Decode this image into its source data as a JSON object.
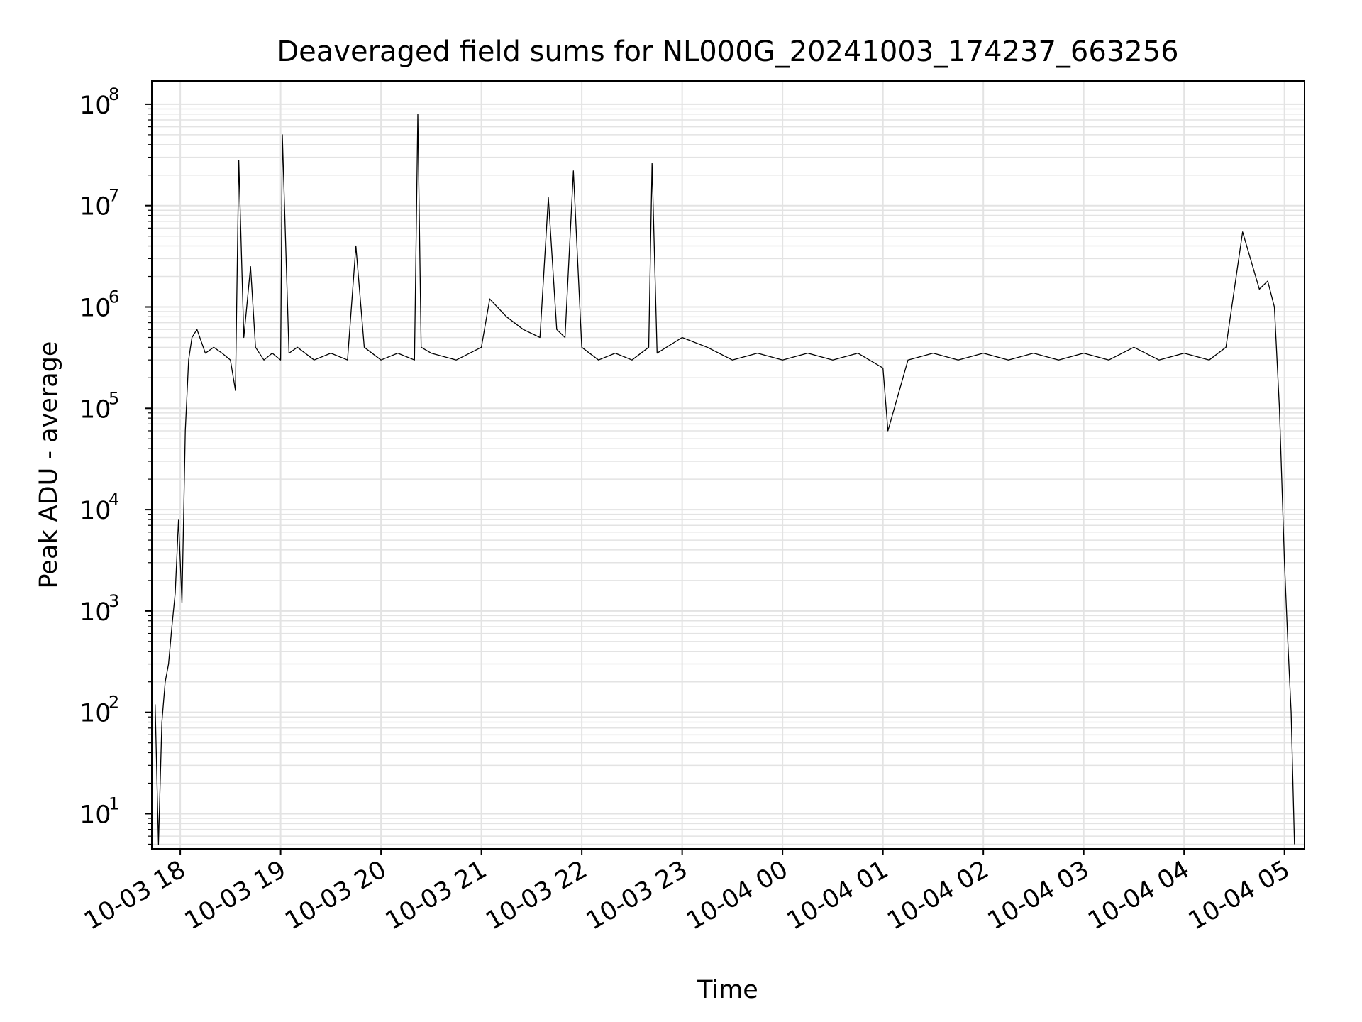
{
  "chart_data": {
    "type": "line",
    "title": "Deaveraged field sums for NL000G_20241003_174237_663256",
    "xlabel": "Time",
    "ylabel": "Peak ADU - average",
    "yscale": "log",
    "ylim": [
      4.5,
      170000000
    ],
    "xlim": [
      "2024-10-03 17:43",
      "2024-10-04 05:12"
    ],
    "grid": true,
    "x_ticks": [
      "10-03 18",
      "10-03 19",
      "10-03 20",
      "10-03 21",
      "10-03 22",
      "10-03 23",
      "10-04 00",
      "10-04 01",
      "10-04 02",
      "10-04 03",
      "10-04 04",
      "10-04 05"
    ],
    "y_ticks": [
      {
        "base": "10",
        "exp": "1"
      },
      {
        "base": "10",
        "exp": "2"
      },
      {
        "base": "10",
        "exp": "3"
      },
      {
        "base": "10",
        "exp": "4"
      },
      {
        "base": "10",
        "exp": "5"
      },
      {
        "base": "10",
        "exp": "6"
      },
      {
        "base": "10",
        "exp": "7"
      },
      {
        "base": "10",
        "exp": "8"
      }
    ],
    "series": [
      {
        "color": "#000000",
        "x": [
          "2024-10-03 17:45",
          "2024-10-03 17:47",
          "2024-10-03 17:49",
          "2024-10-03 17:51",
          "2024-10-03 17:53",
          "2024-10-03 17:55",
          "2024-10-03 17:57",
          "2024-10-03 17:59",
          "2024-10-03 18:01",
          "2024-10-03 18:03",
          "2024-10-03 18:05",
          "2024-10-03 18:07",
          "2024-10-03 18:10",
          "2024-10-03 18:15",
          "2024-10-03 18:20",
          "2024-10-03 18:25",
          "2024-10-03 18:30",
          "2024-10-03 18:33",
          "2024-10-03 18:35",
          "2024-10-03 18:38",
          "2024-10-03 18:42",
          "2024-10-03 18:45",
          "2024-10-03 18:50",
          "2024-10-03 18:55",
          "2024-10-03 19:00",
          "2024-10-03 19:01",
          "2024-10-03 19:05",
          "2024-10-03 19:10",
          "2024-10-03 19:20",
          "2024-10-03 19:30",
          "2024-10-03 19:40",
          "2024-10-03 19:45",
          "2024-10-03 19:50",
          "2024-10-03 20:00",
          "2024-10-03 20:10",
          "2024-10-03 20:20",
          "2024-10-03 20:22",
          "2024-10-03 20:24",
          "2024-10-03 20:30",
          "2024-10-03 20:45",
          "2024-10-03 21:00",
          "2024-10-03 21:05",
          "2024-10-03 21:15",
          "2024-10-03 21:25",
          "2024-10-03 21:35",
          "2024-10-03 21:40",
          "2024-10-03 21:45",
          "2024-10-03 21:50",
          "2024-10-03 21:55",
          "2024-10-03 22:00",
          "2024-10-03 22:10",
          "2024-10-03 22:20",
          "2024-10-03 22:30",
          "2024-10-03 22:40",
          "2024-10-03 22:42",
          "2024-10-03 22:45",
          "2024-10-03 23:00",
          "2024-10-03 23:15",
          "2024-10-03 23:30",
          "2024-10-03 23:45",
          "2024-10-04 00:00",
          "2024-10-04 00:15",
          "2024-10-04 00:30",
          "2024-10-04 00:45",
          "2024-10-04 01:00",
          "2024-10-04 01:03",
          "2024-10-04 01:15",
          "2024-10-04 01:30",
          "2024-10-04 01:45",
          "2024-10-04 02:00",
          "2024-10-04 02:15",
          "2024-10-04 02:30",
          "2024-10-04 02:45",
          "2024-10-04 03:00",
          "2024-10-04 03:15",
          "2024-10-04 03:30",
          "2024-10-04 03:45",
          "2024-10-04 04:00",
          "2024-10-04 04:15",
          "2024-10-04 04:25",
          "2024-10-04 04:35",
          "2024-10-04 04:45",
          "2024-10-04 04:50",
          "2024-10-04 04:54",
          "2024-10-04 04:57",
          "2024-10-04 05:00",
          "2024-10-04 05:02",
          "2024-10-04 05:04",
          "2024-10-04 05:06"
        ],
        "y": [
          120,
          5,
          80,
          200,
          300,
          700,
          1500,
          8000,
          1200,
          60000,
          300000,
          500000,
          600000,
          350000,
          400000,
          350000,
          300000,
          150000,
          28000000,
          500000,
          2500000,
          400000,
          300000,
          350000,
          300000,
          50000000,
          350000,
          400000,
          300000,
          350000,
          300000,
          4000000,
          400000,
          300000,
          350000,
          300000,
          80000000,
          400000,
          350000,
          300000,
          400000,
          1200000,
          800000,
          600000,
          500000,
          12000000,
          600000,
          500000,
          22000000,
          400000,
          300000,
          350000,
          300000,
          400000,
          26000000,
          350000,
          500000,
          400000,
          300000,
          350000,
          300000,
          350000,
          300000,
          350000,
          250000,
          60000,
          300000,
          350000,
          300000,
          350000,
          300000,
          350000,
          300000,
          350000,
          300000,
          400000,
          300000,
          350000,
          300000,
          400000,
          5500000,
          1500000,
          1800000,
          1000000,
          100000,
          3000,
          500,
          100,
          5
        ]
      }
    ]
  }
}
